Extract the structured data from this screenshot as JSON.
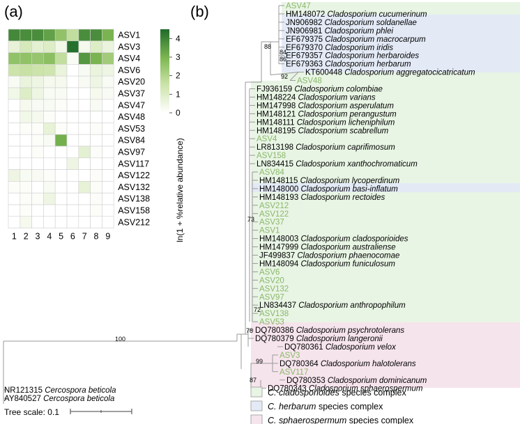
{
  "panel_labels": {
    "a": "(a)",
    "b": "(b)"
  },
  "colors": {
    "heatmap_low": "#ffffff",
    "heatmap_high": "#1f6b2a",
    "asv_label": "#8ab86a",
    "complex_cladosporioides": "#e8f4e4",
    "complex_herbarum": "#e3eaf6",
    "complex_sphaerospermum": "#f6e4ec"
  },
  "chart_data": [
    {
      "type": "heatmap",
      "panel": "(a)",
      "rows": [
        "ASV1",
        "ASV3",
        "ASV4",
        "ASV6",
        "ASV20",
        "ASV37",
        "ASV47",
        "ASV48",
        "ASV53",
        "ASV84",
        "ASV97",
        "ASV117",
        "ASV122",
        "ASV132",
        "ASV138",
        "ASV158",
        "ASV212"
      ],
      "columns": [
        "1",
        "2",
        "3",
        "4",
        "5",
        "6",
        "7",
        "8",
        "9"
      ],
      "values": [
        [
          3.9,
          3.8,
          3.8,
          3.4,
          2.6,
          1.7,
          3.8,
          3.8,
          3.0
        ],
        [
          0.7,
          1.2,
          0.8,
          1.0,
          0.4,
          4.4,
          0.3,
          1.0,
          0.6
        ],
        [
          2.6,
          2.6,
          2.5,
          2.7,
          1.7,
          0.2,
          3.6,
          3.0,
          2.3
        ],
        [
          1.5,
          1.6,
          1.5,
          1.4,
          0.6,
          0.0,
          0.2,
          0.6,
          0.5
        ],
        [
          0.2,
          0.6,
          0.5,
          0.3,
          0.3,
          0.0,
          0.2,
          0.5,
          0.2
        ],
        [
          0.4,
          1.0,
          0.5,
          0.2,
          0.2,
          0.0,
          0.0,
          0.3,
          0.2
        ],
        [
          0.0,
          0.3,
          0.2,
          0.2,
          0.1,
          0.0,
          0.0,
          0.2,
          0.0
        ],
        [
          0.0,
          0.4,
          0.3,
          0.1,
          0.0,
          0.0,
          0.0,
          0.0,
          0.0
        ],
        [
          0.0,
          0.1,
          0.1,
          0.7,
          0.1,
          0.0,
          0.0,
          0.1,
          0.0
        ],
        [
          0.0,
          0.0,
          0.1,
          0.2,
          3.1,
          0.0,
          0.0,
          0.0,
          0.0
        ],
        [
          0.0,
          0.0,
          0.1,
          0.0,
          0.0,
          0.0,
          0.8,
          0.1,
          0.0
        ],
        [
          0.0,
          0.0,
          0.0,
          0.0,
          0.0,
          0.5,
          0.0,
          0.0,
          0.0
        ],
        [
          0.5,
          0.2,
          0.2,
          0.1,
          0.0,
          0.0,
          0.0,
          0.1,
          0.0
        ],
        [
          0.1,
          0.1,
          0.0,
          0.2,
          0.0,
          0.0,
          0.7,
          0.1,
          0.0
        ],
        [
          0.0,
          0.1,
          0.1,
          0.5,
          0.0,
          0.0,
          0.0,
          0.1,
          0.0
        ],
        [
          0.0,
          0.1,
          0.0,
          0.0,
          0.0,
          0.0,
          0.0,
          0.1,
          0.0
        ],
        [
          0.0,
          0.3,
          0.0,
          0.0,
          0.0,
          0.0,
          0.0,
          0.0,
          0.0
        ]
      ],
      "colorbar": {
        "ticks": [
          "4",
          "3",
          "2",
          "1",
          "0"
        ],
        "min": 0,
        "max": 4.5,
        "label": "ln(1 + %relative abundance)"
      }
    },
    {
      "type": "tree",
      "panel": "(b)",
      "leaves": [
        {
          "id": "ASV47",
          "asv": true
        },
        {
          "acc": "HM148072",
          "species": "Cladosporium cucumerinum"
        },
        {
          "acc": "JN906982",
          "species": "Cladosporium soldanellae"
        },
        {
          "acc": "JN906981",
          "species": "Cladosporium phlei"
        },
        {
          "acc": "EF679375",
          "species": "Cladosporium macrocarpum"
        },
        {
          "acc": "EF679370",
          "species": "Cladosporium iridis"
        },
        {
          "acc": "EF679357",
          "species": "Cladosporium herbaroides"
        },
        {
          "acc": "EF679363",
          "species": "Cladosporium herbarum"
        },
        {
          "acc": "KT600448",
          "species": "Cladosporium aggregatocicatricatum"
        },
        {
          "id": "ASV48",
          "asv": true
        },
        {
          "acc": "FJ936159",
          "species": "Cladosporium colombiae"
        },
        {
          "acc": "HM148224",
          "species": "Cladosporium varians"
        },
        {
          "acc": "HM147998",
          "species": "Cladosporium asperulatum"
        },
        {
          "acc": "HM148121",
          "species": "Cladosporium perangustum"
        },
        {
          "acc": "HM148111",
          "species": "Cladosporium licheniphilum"
        },
        {
          "acc": "HM148195",
          "species": "Cladosporium scabrellum"
        },
        {
          "id": "ASV4",
          "asv": true
        },
        {
          "acc": "LR813198",
          "species": "Cladosporium caprifimosum"
        },
        {
          "id": "ASV158",
          "asv": true
        },
        {
          "acc": "LN834415",
          "species": "Cladosporium xanthochromaticum"
        },
        {
          "id": "ASV84",
          "asv": true
        },
        {
          "acc": "HM148115",
          "species": "Cladosporium lycoperdinum"
        },
        {
          "acc": "HM148000",
          "species": "Cladosporium basi-inflatum"
        },
        {
          "acc": "HM148193",
          "species": "Cladosporium rectoides"
        },
        {
          "id": "ASV212",
          "asv": true
        },
        {
          "id": "ASV122",
          "asv": true
        },
        {
          "id": "ASV37",
          "asv": true
        },
        {
          "id": "ASV1",
          "asv": true
        },
        {
          "acc": "HM148003",
          "species": "Cladosporium cladosporioides"
        },
        {
          "acc": "HM147999",
          "species": "Cladosporium australiense"
        },
        {
          "acc": "JF499837",
          "species": "Cladosporium phaenocomae"
        },
        {
          "acc": "HM148094",
          "species": "Cladosporium funiculosum"
        },
        {
          "id": "ASV6",
          "asv": true
        },
        {
          "id": "ASV20",
          "asv": true
        },
        {
          "id": "ASV132",
          "asv": true
        },
        {
          "id": "ASV97",
          "asv": true
        },
        {
          "acc": "LN834437",
          "species": "Cladosporium anthropophilum"
        },
        {
          "id": "ASV138",
          "asv": true
        },
        {
          "id": "ASV53",
          "asv": true
        },
        {
          "acc": "DQ780386",
          "species": "Cladosporium psychrotolerans"
        },
        {
          "acc": "DQ780379",
          "species": "Cladosporium langeronii"
        },
        {
          "acc": "DQ780361",
          "species": "Cladosporium velox"
        },
        {
          "id": "ASV3",
          "asv": true
        },
        {
          "acc": "DQ780364",
          "species": "Cladosporium halotolerans"
        },
        {
          "id": "ASV117",
          "asv": true
        },
        {
          "acc": "DQ780353",
          "species": "Cladosporium dominicanum"
        },
        {
          "acc": "DQ780343",
          "species": "Cladosporium sphaerospermum"
        }
      ],
      "outgroup": [
        {
          "acc": "NR121315",
          "species": "Cercospora beticola"
        },
        {
          "acc": "AY840527",
          "species": "Cercospora beticola"
        }
      ],
      "support_values": [
        "88",
        "84",
        "86",
        "92",
        "73",
        "72",
        "78",
        "100",
        "99",
        "87"
      ],
      "tree_scale": {
        "label": "Tree scale: 0.1",
        "value": 0.1
      },
      "legend": [
        {
          "species": "C. cladosporioides",
          "suffix": " species complex"
        },
        {
          "species": "C. herbarum",
          "suffix": " species complex"
        },
        {
          "species": "C. sphaerospermum",
          "suffix": " species complex"
        }
      ]
    }
  ]
}
